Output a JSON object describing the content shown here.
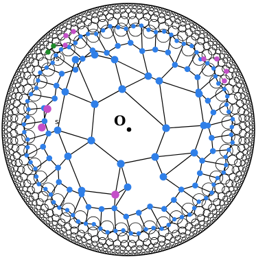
{
  "labels": {
    "origin": "O",
    "s": "s",
    "s_prime": "s'"
  },
  "colors": {
    "background": "#ffffff",
    "line": "#000000",
    "node": "#2f7fe8",
    "highlight_magenta": "#c44fc8",
    "highlight_green": "#1e8c2a"
  }
}
